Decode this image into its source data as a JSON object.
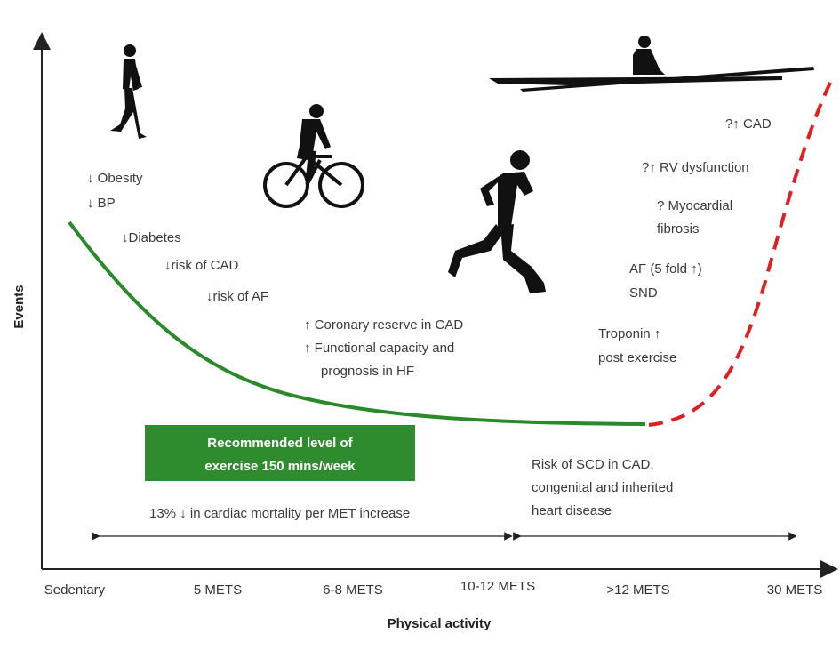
{
  "axes": {
    "y_label": "Events",
    "x_label": "Physical activity",
    "ticks": [
      "Sedentary",
      "5 METS",
      "6-8 METS",
      "10-12 METS",
      ">12 METS",
      "30 METS"
    ]
  },
  "benefits": {
    "obesity": "↓ Obesity",
    "bp": "↓ BP",
    "diabetes": "↓Diabetes",
    "cad_risk": "↓risk of CAD",
    "af_risk": "↓risk of AF",
    "coronary_reserve": "↑ Coronary reserve in CAD",
    "functional_capacity_1": "↑ Functional capacity and",
    "functional_capacity_2": "prognosis in HF"
  },
  "risks": {
    "cad": "?↑ CAD",
    "rv_dysfunction": "?↑ RV dysfunction",
    "myocardial_fibrosis_1": "? Myocardial",
    "myocardial_fibrosis_2": "fibrosis",
    "af": "AF (5 fold ↑)",
    "snd": "SND",
    "troponin_1": "Troponin ↑",
    "troponin_2": "post exercise"
  },
  "recommendation": {
    "line1": "Recommended level of",
    "line2": "exercise 150 mins/week",
    "color": "#2e8b2e"
  },
  "ranges": {
    "left_note": "13% ↓ in cardiac mortality per MET increase",
    "right_note_1": "Risk of SCD in CAD,",
    "right_note_2": "congenital and inherited",
    "right_note_3": "heart disease"
  },
  "curves": {
    "benefit_color": "#2a8a2a",
    "risk_color": "#e02020"
  },
  "figures": [
    "walker-icon",
    "cyclist-icon",
    "runner-icon",
    "rower-icon"
  ]
}
